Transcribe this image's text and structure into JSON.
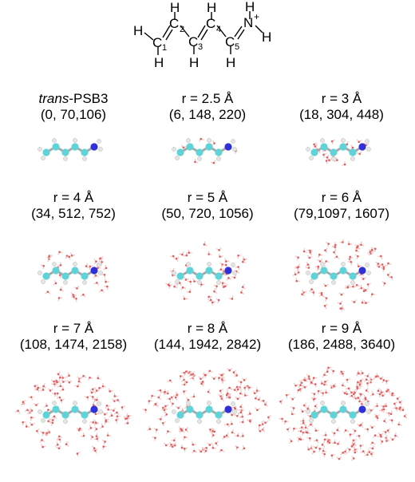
{
  "structure": {
    "atoms": {
      "c1": "C",
      "c1_index": "1",
      "c2": "C",
      "c2_index": "2",
      "c3": "C",
      "c3_index": "3",
      "c4": "C",
      "c4_index": "4",
      "c5": "C",
      "c5_index": "5",
      "n": "N",
      "n_charge": "+",
      "h": "H"
    }
  },
  "panels": [
    {
      "id": "trans-psb3",
      "title_italic": "trans",
      "title_rest": "-PSB3",
      "counts": "(0, 70,106)",
      "radius": 0,
      "waters": 0
    },
    {
      "id": "r-2-5",
      "title_italic": "",
      "title_rest": "r = 2.5 Å",
      "counts": "(6, 148, 220)",
      "radius": 2.5,
      "waters": 6
    },
    {
      "id": "r-3",
      "title_italic": "",
      "title_rest": "r = 3 Å",
      "counts": "(18, 304, 448)",
      "radius": 3,
      "waters": 18
    },
    {
      "id": "r-4",
      "title_italic": "",
      "title_rest": "r = 4 Å",
      "counts": "(34, 512, 752)",
      "radius": 4,
      "waters": 34
    },
    {
      "id": "r-5",
      "title_italic": "",
      "title_rest": "r = 5 Å",
      "counts": "(50, 720, 1056)",
      "radius": 5,
      "waters": 50
    },
    {
      "id": "r-6",
      "title_italic": "",
      "title_rest": "r = 6 Å",
      "counts": "(79,1097, 1607)",
      "radius": 6,
      "waters": 79
    },
    {
      "id": "r-7",
      "title_italic": "",
      "title_rest": "r = 7 Å",
      "counts": "(108, 1474, 2158)",
      "radius": 7,
      "waters": 108
    },
    {
      "id": "r-8",
      "title_italic": "",
      "title_rest": "r = 8 Å",
      "counts": "(144, 1942, 2842)",
      "radius": 8,
      "waters": 144
    },
    {
      "id": "r-9",
      "title_italic": "",
      "title_rest": "r = 9 Å",
      "counts": "(186, 2488, 3640)",
      "radius": 9,
      "waters": 186
    }
  ],
  "colors": {
    "carbon": "#5fd3d8",
    "nitrogen": "#3030d8",
    "hydrogen": "#e4e4e4",
    "water_oxygen": "#e06060",
    "water_hydrogen": "#f2c8c8"
  }
}
